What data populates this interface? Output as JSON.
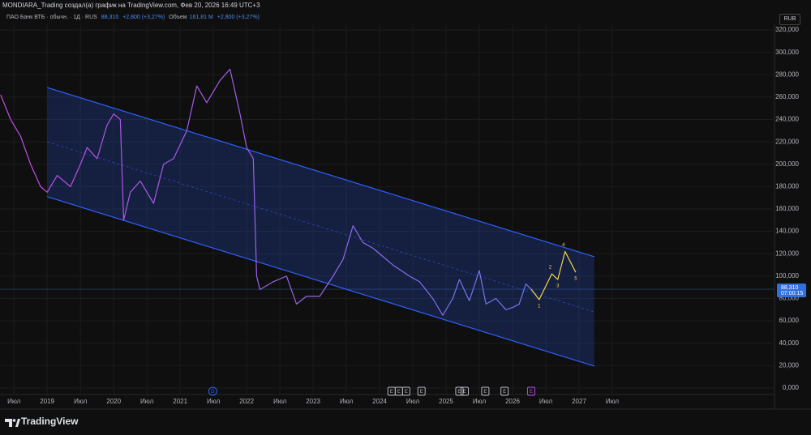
{
  "header": "MONDIARA_Trading создал(а) график на TradingView.com, Фев 20, 2026 16:49 UTC+3",
  "legend": {
    "symbol": "ПАО Банк ВТБ · обычн. · 1Д · RUS",
    "price": "88,310",
    "change": "+2,800 (+3,27%)",
    "volume_label": "Объем",
    "volume": "161,81 М",
    "volume_change": "+2,800 (+3,27%)"
  },
  "currency": "RUB",
  "brand": "TradingView",
  "chart_data": {
    "type": "line",
    "xlim": [
      2018.29,
      2029.94
    ],
    "ylim": [
      -5.8,
      325.1
    ],
    "grid": true,
    "xticks": [
      {
        "value": 2018.5,
        "label": "Июл"
      },
      2019,
      {
        "value": 2019.5,
        "label": "Июл"
      },
      2020,
      {
        "value": 2020.5,
        "label": "Июл"
      },
      2021,
      {
        "value": 2021.5,
        "label": "Июл"
      },
      2022,
      {
        "value": 2022.5,
        "label": "Июл"
      },
      2023,
      {
        "value": 2023.5,
        "label": "Июл"
      },
      2024,
      {
        "value": 2024.5,
        "label": "Июл"
      },
      2025,
      {
        "value": 2025.5,
        "label": "Июл"
      },
      2026,
      {
        "value": 2026.5,
        "label": "Июл"
      },
      2027,
      {
        "value": 2027.5,
        "label": "Июл"
      }
    ],
    "yticks": [
      {
        "value": 0,
        "label": "0,000"
      },
      {
        "value": 20,
        "label": "20,000"
      },
      {
        "value": 40,
        "label": "40,000"
      },
      {
        "value": 60,
        "label": "60,000"
      },
      {
        "value": 80,
        "label": "80,000"
      },
      {
        "value": 100,
        "label": "100,000"
      },
      {
        "value": 120,
        "label": "120,000"
      },
      {
        "value": 140,
        "label": "140,000"
      },
      {
        "value": 160,
        "label": "160,000"
      },
      {
        "value": 180,
        "label": "180,000"
      },
      {
        "value": 200,
        "label": "200,000"
      },
      {
        "value": 220,
        "label": "220,000"
      },
      {
        "value": 240,
        "label": "240,000"
      },
      {
        "value": 260,
        "label": "260,000"
      },
      {
        "value": 280,
        "label": "280,000"
      },
      {
        "value": 300,
        "label": "300,000"
      },
      {
        "value": 320,
        "label": "320,000"
      }
    ],
    "series": [
      {
        "color": [
          "#c24ce6",
          "#4a8cf2"
        ],
        "x": [
          2018.3,
          2018.45,
          2018.6,
          2018.75,
          2018.9,
          2019.0,
          2019.15,
          2019.35,
          2019.5,
          2019.6,
          2019.75,
          2019.9,
          2020.0,
          2020.1,
          2020.15,
          2020.25,
          2020.4,
          2020.6,
          2020.75,
          2020.9,
          2021.1,
          2021.25,
          2021.4,
          2021.6,
          2021.75,
          2021.9,
          2022.0,
          2022.1,
          2022.15,
          2022.2,
          2022.4,
          2022.6,
          2022.75,
          2022.9,
          2023.1,
          2023.3,
          2023.45,
          2023.6,
          2023.75,
          2023.9,
          2024.0,
          2024.2,
          2024.45,
          2024.6,
          2024.8,
          2024.95,
          2025.1,
          2025.2,
          2025.35,
          2025.5,
          2025.6,
          2025.75,
          2025.9,
          2026.0,
          2026.1,
          2026.2,
          2026.28
        ],
        "values": [
          262,
          240,
          225,
          200,
          180,
          175,
          190,
          180,
          200,
          215,
          205,
          235,
          245,
          240,
          150,
          175,
          185,
          165,
          200,
          205,
          230,
          270,
          255,
          275,
          285,
          245,
          215,
          205,
          100,
          88,
          95,
          100,
          75,
          82,
          82,
          100,
          115,
          145,
          130,
          125,
          120,
          110,
          100,
          95,
          80,
          65,
          80,
          97,
          78,
          105,
          75,
          80,
          70,
          72,
          75,
          93,
          88.31
        ]
      },
      {
        "color": "#f5d547",
        "x": [
          2026.28,
          2026.4,
          2026.59,
          2026.68,
          2026.79,
          2026.95
        ],
        "values": [
          88.31,
          79,
          102,
          97,
          122,
          103.5
        ],
        "wave_labels": [
          null,
          "1",
          "2",
          "3",
          "4",
          "5"
        ]
      }
    ],
    "channel": {
      "color": "#2f5fff",
      "x": [
        2019.0,
        2027.23
      ],
      "upper": [
        268.6,
        117.3
      ],
      "middle": [
        220,
        68
      ],
      "lower": [
        171,
        19.6
      ]
    },
    "current_price": {
      "value": 88.31,
      "label": "88,310",
      "countdown": "07:00:15"
    },
    "events": [
      {
        "label": "D",
        "x": 2021.49,
        "color": "#2962ff"
      },
      {
        "label": "E",
        "x": 2024.18,
        "color": "#b2b5be"
      },
      {
        "label": "E",
        "x": 2024.29,
        "color": "#b2b5be"
      },
      {
        "label": "E",
        "x": 2024.4,
        "color": "#b2b5be"
      },
      {
        "label": "E",
        "x": 2024.63,
        "color": "#b2b5be"
      },
      {
        "label": "E",
        "x": 2025.2,
        "color": "#b2b5be"
      },
      {
        "label": "E",
        "x": 2025.28,
        "color": "#b2b5be"
      },
      {
        "label": "E",
        "x": 2025.59,
        "color": "#b2b5be"
      },
      {
        "label": "E",
        "x": 2025.88,
        "color": "#b2b5be"
      },
      {
        "label": "E",
        "x": 2026.28,
        "color": "#b04ce6"
      }
    ]
  }
}
